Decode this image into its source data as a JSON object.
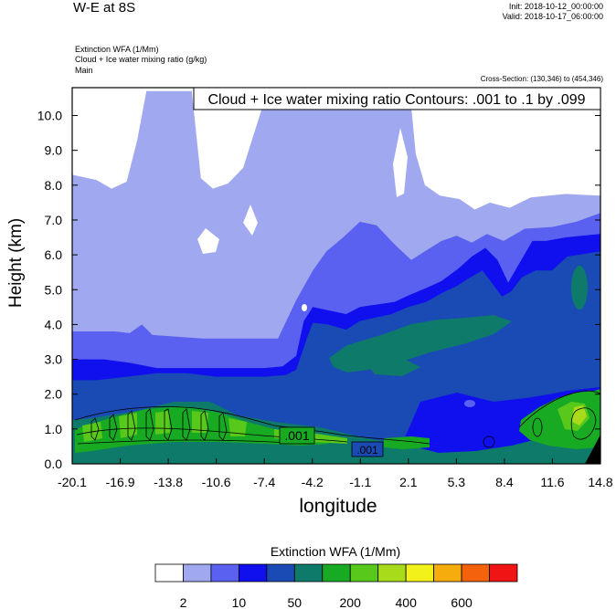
{
  "header": {
    "title": "W-E at 8S",
    "init": "Init: 2018-10-12_00:00:00",
    "valid": "Valid: 2018-10-17_06:00:00",
    "fields": [
      "Extinction WFA   (1/Mm)",
      "Cloud + Ice water mixing ratio   (g/kg)",
      "Main"
    ],
    "cross_section": "Cross-Section: (130,346) to (454,346)"
  },
  "chart_data": {
    "type": "contour",
    "title": "W-E at 8S",
    "xlabel": "longitude",
    "ylabel": "Height (km)",
    "xlim": [
      -20.1,
      14.8
    ],
    "ylim": [
      0,
      10.8
    ],
    "x_ticks": [
      "-20.1",
      "-16.9",
      "-13.8",
      "-10.6",
      "-7.4",
      "-4.2",
      "-1.1",
      "2.1",
      "5.3",
      "8.4",
      "11.6",
      "14.8"
    ],
    "y_ticks": [
      "0.0",
      "1.0",
      "2.0",
      "3.0",
      "4.0",
      "5.0",
      "6.0",
      "7.0",
      "8.0",
      "9.0",
      "10.0"
    ],
    "contour_legend": "Cloud + Ice water mixing ratio Contours: .001 to .1 by .099",
    "contour_labels": [
      ".001",
      ".001"
    ],
    "colorbar": {
      "title": "Extinction WFA  (1/Mm)",
      "labels": [
        "2",
        "10",
        "50",
        "200",
        "400",
        "600"
      ],
      "colors": [
        "#ffffff",
        "#a0a8f0",
        "#5a60f0",
        "#1010ee",
        "#1a4ab4",
        "#0e7a6a",
        "#18aa22",
        "#58c81a",
        "#a8dc1a",
        "#f2f21a",
        "#f5ac0c",
        "#f5620c",
        "#f01414"
      ]
    },
    "layers": [
      {
        "level": 1,
        "color": "#a0a8f0",
        "top_km": [
          [
            -20.1,
            8.3
          ],
          [
            -18.5,
            8.15
          ],
          [
            -17.5,
            7.9
          ],
          [
            -16.5,
            8.1
          ],
          [
            -15.8,
            9.3
          ],
          [
            -15.2,
            10.7
          ],
          [
            -12.2,
            10.7
          ],
          [
            -11.6,
            8.2
          ],
          [
            -10.8,
            7.9
          ],
          [
            -9.8,
            8.05
          ],
          [
            -8.8,
            8.5
          ],
          [
            -7.2,
            10.7
          ],
          [
            2.2,
            10.7
          ],
          [
            2.6,
            8.9
          ],
          [
            3.2,
            8.0
          ],
          [
            4.2,
            7.7
          ],
          [
            5.5,
            7.6
          ],
          [
            6.5,
            7.3
          ],
          [
            7.5,
            7.5
          ],
          [
            8.8,
            7.35
          ],
          [
            10.2,
            7.65
          ],
          [
            12.5,
            7.75
          ],
          [
            14.8,
            7.7
          ]
        ]
      },
      {
        "level": 2,
        "color": "#5a60f0",
        "top_km": [
          [
            -20.1,
            3.8
          ],
          [
            -17.3,
            3.8
          ],
          [
            -16.3,
            3.75
          ],
          [
            -15.5,
            4.0
          ],
          [
            -14.8,
            3.7
          ],
          [
            -11.5,
            3.6
          ],
          [
            -8.5,
            3.6
          ],
          [
            -6.5,
            3.6
          ],
          [
            -5.3,
            4.7
          ],
          [
            -4.2,
            5.55
          ],
          [
            -3.3,
            6.1
          ],
          [
            -2.2,
            6.5
          ],
          [
            -1.1,
            6.95
          ],
          [
            0.0,
            6.85
          ],
          [
            1.2,
            6.3
          ],
          [
            2.3,
            5.85
          ],
          [
            3.2,
            6.1
          ],
          [
            4.3,
            6.4
          ],
          [
            5.3,
            6.55
          ],
          [
            6.3,
            6.35
          ],
          [
            7.3,
            6.6
          ],
          [
            8.4,
            6.4
          ],
          [
            9.8,
            6.75
          ],
          [
            11.6,
            6.8
          ],
          [
            13.2,
            6.95
          ],
          [
            14.8,
            7.2
          ]
        ]
      },
      {
        "level": 3,
        "color": "#1010ee",
        "top_km": [
          [
            -20.1,
            3.0
          ],
          [
            -18.0,
            3.0
          ],
          [
            -16.3,
            2.9
          ],
          [
            -14.5,
            2.75
          ],
          [
            -12.5,
            2.75
          ],
          [
            -11.0,
            2.75
          ],
          [
            -9.3,
            2.75
          ],
          [
            -7.4,
            2.75
          ],
          [
            -6.2,
            2.8
          ],
          [
            -5.3,
            3.1
          ],
          [
            -4.8,
            4.1
          ],
          [
            -4.2,
            4.5
          ],
          [
            -3.1,
            4.4
          ],
          [
            -2.0,
            4.3
          ],
          [
            -1.1,
            4.5
          ],
          [
            1.2,
            4.65
          ],
          [
            2.2,
            4.85
          ],
          [
            3.3,
            5.05
          ],
          [
            4.3,
            5.25
          ],
          [
            5.4,
            5.6
          ],
          [
            6.3,
            5.95
          ],
          [
            7.2,
            6.2
          ],
          [
            8.0,
            5.85
          ],
          [
            8.7,
            5.2
          ],
          [
            9.5,
            5.8
          ],
          [
            10.3,
            6.4
          ],
          [
            11.2,
            6.4
          ],
          [
            12.5,
            6.5
          ],
          [
            14.8,
            6.6
          ]
        ]
      },
      {
        "level": 4,
        "color": "#1a4ab4",
        "top_km": [
          [
            -20.1,
            2.4
          ],
          [
            -18.5,
            2.4
          ],
          [
            -16.5,
            2.5
          ],
          [
            -14.5,
            2.6
          ],
          [
            -12.5,
            2.6
          ],
          [
            -10.6,
            2.5
          ],
          [
            -8.5,
            2.5
          ],
          [
            -7.4,
            2.5
          ],
          [
            -6.0,
            2.55
          ],
          [
            -5.3,
            2.7
          ],
          [
            -4.6,
            3.6
          ],
          [
            -4.2,
            4.05
          ],
          [
            -3.2,
            4.0
          ],
          [
            -2.0,
            3.85
          ],
          [
            -1.1,
            4.1
          ],
          [
            1.0,
            4.3
          ],
          [
            2.1,
            4.5
          ],
          [
            3.3,
            4.65
          ],
          [
            4.3,
            4.9
          ],
          [
            5.3,
            5.1
          ],
          [
            6.0,
            5.3
          ],
          [
            7.0,
            5.55
          ],
          [
            7.7,
            5.15
          ],
          [
            8.3,
            4.8
          ],
          [
            8.9,
            4.95
          ],
          [
            9.6,
            5.35
          ],
          [
            10.5,
            5.55
          ],
          [
            11.6,
            5.55
          ],
          [
            12.6,
            5.95
          ],
          [
            14.8,
            6.1
          ]
        ]
      }
    ]
  }
}
